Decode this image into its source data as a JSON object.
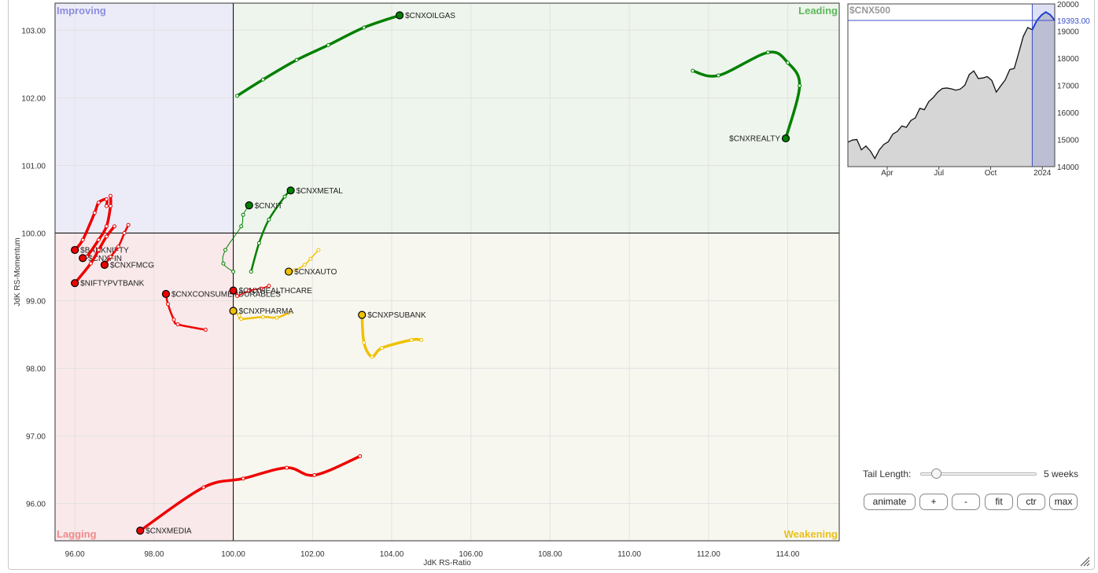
{
  "chart_data": [
    {
      "type": "scatter",
      "subtype": "relative-rotation-graph",
      "xlabel": "JdK RS-Ratio",
      "ylabel": "JdK RS-Momentum",
      "xlim": [
        95.5,
        115.3
      ],
      "ylim": [
        95.45,
        103.4
      ],
      "x_ticks": [
        96,
        98,
        100,
        102,
        104,
        106,
        108,
        110,
        112,
        114
      ],
      "x_tick_labels": [
        "96.00",
        "98.00",
        "100.00",
        "102.00",
        "104.00",
        "106.00",
        "108.00",
        "110.00",
        "112.00",
        "114.00"
      ],
      "y_ticks": [
        96,
        97,
        98,
        99,
        100,
        101,
        102,
        103
      ],
      "y_tick_labels": [
        "96.00",
        "97.00",
        "98.00",
        "99.00",
        "100.00",
        "101.00",
        "102.00",
        "103.00"
      ],
      "center": [
        100,
        100
      ],
      "quadrants": [
        {
          "name": "Improving",
          "position": "top-left",
          "fill": "#ececf8",
          "text_color": "#8c8ce0"
        },
        {
          "name": "Leading",
          "position": "top-right",
          "fill": "#eef5ec",
          "text_color": "#5cb85c"
        },
        {
          "name": "Lagging",
          "position": "bottom-left",
          "fill": "#f9e9ea",
          "text_color": "#f08a8a"
        },
        {
          "name": "Weakening",
          "position": "bottom-right",
          "fill": "#f8f7ef",
          "text_color": "#e8c01c"
        }
      ],
      "colors": {
        "leading": "#008000",
        "lagging": "#ee0000",
        "weakening": "#f0c000"
      },
      "series": [
        {
          "name": "$CNXOILGAS",
          "color": "#008000",
          "width": 3.5,
          "points": [
            [
              100.1,
              102.03
            ],
            [
              100.75,
              102.27
            ],
            [
              101.6,
              102.56
            ],
            [
              102.4,
              102.78
            ],
            [
              103.3,
              103.04
            ],
            [
              104.2,
              103.22
            ]
          ]
        },
        {
          "name": "$CNXREALTY",
          "color": "#008000",
          "width": 3.5,
          "points": [
            [
              111.6,
              102.4
            ],
            [
              112.25,
              102.33
            ],
            [
              113.5,
              102.67
            ],
            [
              114.0,
              102.52
            ],
            [
              114.3,
              102.18
            ],
            [
              113.95,
              101.4
            ]
          ]
        },
        {
          "name": "$CNXMETAL",
          "color": "#008000",
          "width": 2.5,
          "points": [
            [
              100.45,
              99.43
            ],
            [
              100.65,
              99.85
            ],
            [
              100.9,
              100.2
            ],
            [
              101.3,
              100.54
            ],
            [
              101.45,
              100.63
            ]
          ]
        },
        {
          "name": "$CNXIT",
          "color": "#008000",
          "width": 1,
          "points": [
            [
              100.0,
              99.43
            ],
            [
              99.75,
              99.55
            ],
            [
              99.8,
              99.75
            ],
            [
              100.2,
              100.1
            ],
            [
              100.25,
              100.27
            ],
            [
              100.4,
              100.41
            ]
          ]
        },
        {
          "name": "$BANKNIFTY",
          "color": "#ee0000",
          "width": 3.5,
          "points": [
            [
              96.8,
              100.4
            ],
            [
              96.8,
              100.5
            ],
            [
              96.6,
              100.45
            ],
            [
              96.5,
              100.3
            ],
            [
              96.2,
              99.9
            ],
            [
              96.0,
              99.75
            ]
          ]
        },
        {
          "name": "$CNXFIN",
          "color": "#ee0000",
          "width": 3.5,
          "points": [
            [
              96.9,
              100.55
            ],
            [
              96.9,
              100.4
            ],
            [
              96.8,
              100.1
            ],
            [
              96.6,
              99.9
            ],
            [
              96.3,
              99.65
            ],
            [
              96.2,
              99.63
            ]
          ]
        },
        {
          "name": "$CNXFMCG",
          "color": "#ee0000",
          "width": 2.5,
          "points": [
            [
              97.35,
              100.12
            ],
            [
              97.25,
              100.0
            ],
            [
              97.1,
              99.8
            ],
            [
              96.9,
              99.65
            ],
            [
              96.75,
              99.53
            ]
          ]
        },
        {
          "name": "$NIFTYPVTBANK",
          "color": "#ee0000",
          "width": 3.5,
          "points": [
            [
              97.0,
              100.1
            ],
            [
              96.8,
              99.95
            ],
            [
              96.6,
              99.75
            ],
            [
              96.4,
              99.55
            ],
            [
              96.0,
              99.26
            ]
          ]
        },
        {
          "name": "$CNXCONSUMERDURABLES",
          "color": "#ee0000",
          "width": 2.5,
          "points": [
            [
              99.3,
              98.57
            ],
            [
              98.6,
              98.65
            ],
            [
              98.5,
              98.72
            ],
            [
              98.35,
              98.95
            ],
            [
              98.3,
              99.1
            ]
          ]
        },
        {
          "name": "$CNXHEALTHCARE",
          "color": "#ee0000",
          "width": 1.5,
          "points": [
            [
              100.9,
              99.22
            ],
            [
              100.7,
              99.18
            ],
            [
              100.4,
              99.15
            ],
            [
              100.1,
              99.07
            ],
            [
              100.05,
              99.13
            ],
            [
              100.0,
              99.15
            ]
          ]
        },
        {
          "name": "$CNXMEDIA",
          "color": "#ee0000",
          "width": 3.5,
          "points": [
            [
              103.2,
              96.7
            ],
            [
              102.05,
              96.42
            ],
            [
              101.35,
              96.53
            ],
            [
              100.25,
              96.37
            ],
            [
              99.25,
              96.24
            ],
            [
              97.65,
              95.6
            ]
          ]
        },
        {
          "name": "$CNXAUTO",
          "color": "#f0c000",
          "width": 1.5,
          "points": [
            [
              102.15,
              99.75
            ],
            [
              101.95,
              99.62
            ],
            [
              101.8,
              99.53
            ],
            [
              101.55,
              99.45
            ],
            [
              101.4,
              99.43
            ]
          ]
        },
        {
          "name": "$CNXPHARMA",
          "color": "#f0c000",
          "width": 2.5,
          "points": [
            [
              101.4,
              98.82
            ],
            [
              101.1,
              98.75
            ],
            [
              100.75,
              98.76
            ],
            [
              100.2,
              98.73
            ],
            [
              100.15,
              98.78
            ],
            [
              100.0,
              98.85
            ]
          ]
        },
        {
          "name": "$CNXPSUBANK",
          "color": "#f0c000",
          "width": 3.5,
          "points": [
            [
              104.75,
              98.42
            ],
            [
              104.5,
              98.42
            ],
            [
              103.75,
              98.3
            ],
            [
              103.5,
              98.17
            ],
            [
              103.3,
              98.38
            ],
            [
              103.25,
              98.79
            ]
          ]
        }
      ]
    },
    {
      "type": "area",
      "title": "$CNX500",
      "x_tick_labels": [
        "Apr",
        "Jul",
        "Oct",
        "2024"
      ],
      "y_ticks": [
        14000,
        15000,
        16000,
        17000,
        18000,
        19000,
        20000
      ],
      "y_tick_labels": [
        "14000",
        "15000",
        "16000",
        "17000",
        "18000",
        "19000",
        "20000"
      ],
      "ylim": [
        14000,
        20000
      ],
      "current_value_label": "19393.00",
      "current_value": 19393,
      "values": [
        14900,
        14980,
        15000,
        14620,
        14760,
        14580,
        14300,
        14620,
        14820,
        14920,
        15200,
        15300,
        15500,
        15450,
        15700,
        15800,
        16150,
        16100,
        16400,
        16550,
        16750,
        16880,
        16900,
        16870,
        16820,
        16860,
        17000,
        17400,
        17530,
        17250,
        17270,
        17320,
        17180,
        16750,
        16980,
        17200,
        17580,
        17620,
        18200,
        18800,
        19130,
        19050,
        19380,
        19580,
        19700,
        19600,
        19393
      ],
      "highlight_last": 5
    }
  ],
  "controls": {
    "tail_label": "Tail Length:",
    "tail_value": "5 weeks",
    "tail_fraction": 0.1,
    "buttons": [
      "animate",
      "+",
      "-",
      "fit",
      "ctr",
      "max"
    ]
  }
}
